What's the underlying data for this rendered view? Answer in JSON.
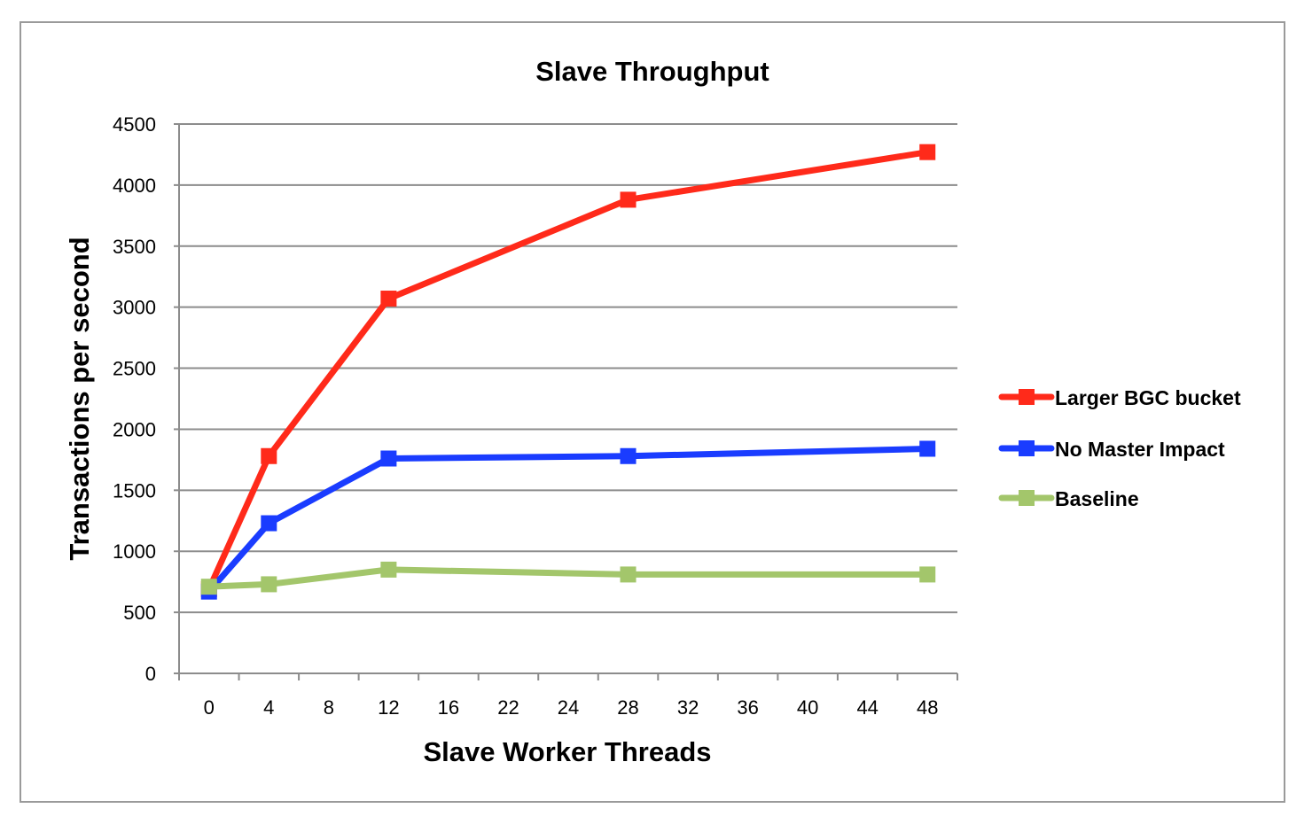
{
  "chart_data": {
    "type": "line",
    "title": "Slave Throughput",
    "xlabel": "Slave Worker Threads",
    "ylabel": "Transactions per second",
    "categories": [
      "0",
      "4",
      "8",
      "12",
      "16",
      "22",
      "24",
      "28",
      "32",
      "36",
      "40",
      "44",
      "48"
    ],
    "y_ticks": [
      "0",
      "500",
      "1000",
      "1500",
      "2000",
      "2500",
      "3000",
      "3500",
      "4000",
      "4500"
    ],
    "ylim": [
      0,
      4500
    ],
    "grid": true,
    "legend_position": "right",
    "series": [
      {
        "name": "Larger BGC bucket",
        "color": "#ff2a1a",
        "points": [
          {
            "category": "0",
            "value": 690
          },
          {
            "category": "4",
            "value": 1780
          },
          {
            "category": "12",
            "value": 3070
          },
          {
            "category": "28",
            "value": 3880
          },
          {
            "category": "48",
            "value": 4270
          }
        ]
      },
      {
        "name": "No Master Impact",
        "color": "#1a3cff",
        "points": [
          {
            "category": "0",
            "value": 670
          },
          {
            "category": "4",
            "value": 1230
          },
          {
            "category": "12",
            "value": 1760
          },
          {
            "category": "28",
            "value": 1780
          },
          {
            "category": "48",
            "value": 1840
          }
        ]
      },
      {
        "name": "Baseline",
        "color": "#a3c66b",
        "points": [
          {
            "category": "0",
            "value": 710
          },
          {
            "category": "4",
            "value": 730
          },
          {
            "category": "12",
            "value": 850
          },
          {
            "category": "28",
            "value": 810
          },
          {
            "category": "48",
            "value": 810
          }
        ]
      }
    ]
  }
}
